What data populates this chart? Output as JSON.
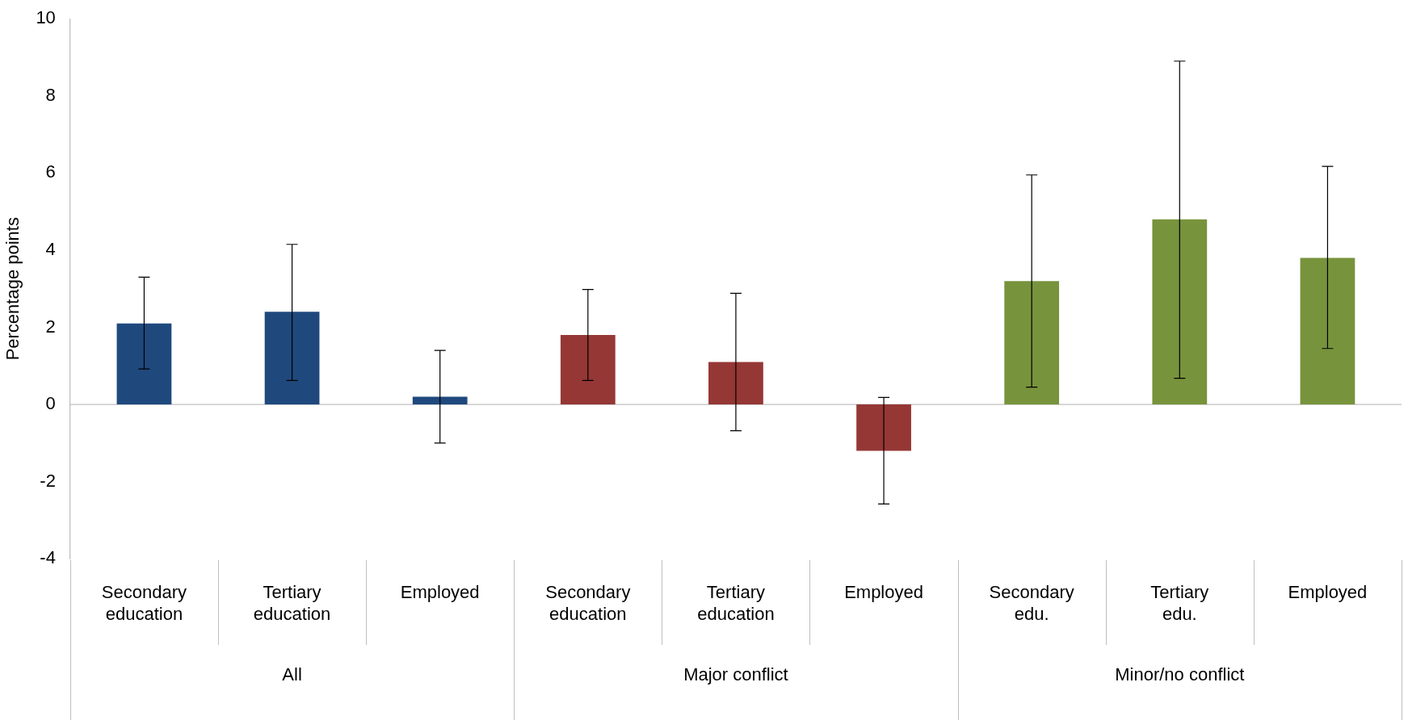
{
  "chart_data": {
    "type": "bar",
    "ylabel": "Percentage points",
    "categories": [
      "Secondary education",
      "Tertiary education",
      "Employed",
      "Secondary education",
      "Tertiary education",
      "Employed",
      "Secondary edu.",
      "Tertiary edu.",
      "Employed"
    ],
    "series": [
      {
        "color": "#1f497d",
        "values": [
          2.1,
          2.4,
          0.2,
          null,
          null,
          null,
          null,
          null,
          null
        ],
        "errors": [
          [
            0.92,
            3.3
          ],
          [
            0.62,
            4.15
          ],
          [
            -1.0,
            1.4
          ],
          null,
          null,
          null,
          null,
          null,
          null
        ]
      },
      {
        "color": "#953735",
        "values": [
          null,
          null,
          null,
          1.8,
          1.1,
          -1.2,
          null,
          null,
          null
        ],
        "errors": [
          null,
          null,
          null,
          [
            0.62,
            2.98
          ],
          [
            -0.68,
            2.88
          ],
          [
            -2.58,
            0.18
          ],
          null,
          null,
          null
        ]
      },
      {
        "color": "#77933c",
        "values": [
          null,
          null,
          null,
          null,
          null,
          null,
          3.2,
          4.8,
          3.8
        ],
        "errors": [
          null,
          null,
          null,
          null,
          null,
          null,
          [
            0.45,
            5.95
          ],
          [
            0.68,
            8.9
          ],
          [
            1.45,
            6.17
          ]
        ]
      }
    ],
    "annotations": [
      "All",
      "Major conflict",
      "Minor/no conflict"
    ],
    "ref_lines": [
      {
        "axis": "y",
        "value": 0,
        "color": "#bfbfbf"
      }
    ],
    "ylim": [
      -4,
      10
    ],
    "yticks": [
      -4,
      -2,
      0,
      2,
      4,
      6,
      8,
      10
    ],
    "grid": false,
    "legend": false
  }
}
